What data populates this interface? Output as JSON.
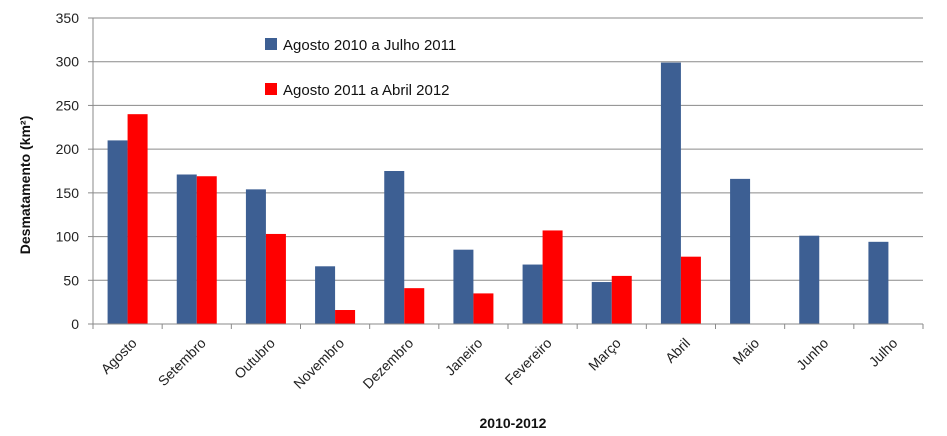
{
  "chart_data": {
    "type": "bar",
    "categories": [
      "Agosto",
      "Setembro",
      "Outubro",
      "Novembro",
      "Dezembro",
      "Janeiro",
      "Fevereiro",
      "Março",
      "Abril",
      "Maio",
      "Junho",
      "Julho"
    ],
    "series": [
      {
        "name": "Agosto 2010 a Julho 2011",
        "color": "#3d5f93",
        "values": [
          210,
          171,
          154,
          66,
          175,
          85,
          68,
          48,
          299,
          166,
          101,
          94
        ]
      },
      {
        "name": "Agosto 2011 a Abril 2012",
        "color": "#ff0000",
        "values": [
          240,
          169,
          103,
          16,
          41,
          35,
          107,
          55,
          77,
          null,
          null,
          null
        ]
      }
    ],
    "xlabel": "2010-2012",
    "ylabel": "Desmatamento (km²)",
    "ylim": [
      0,
      350
    ],
    "yticks": [
      0,
      50,
      100,
      150,
      200,
      250,
      300,
      350
    ],
    "grid": true,
    "legend_position": "top-left"
  }
}
